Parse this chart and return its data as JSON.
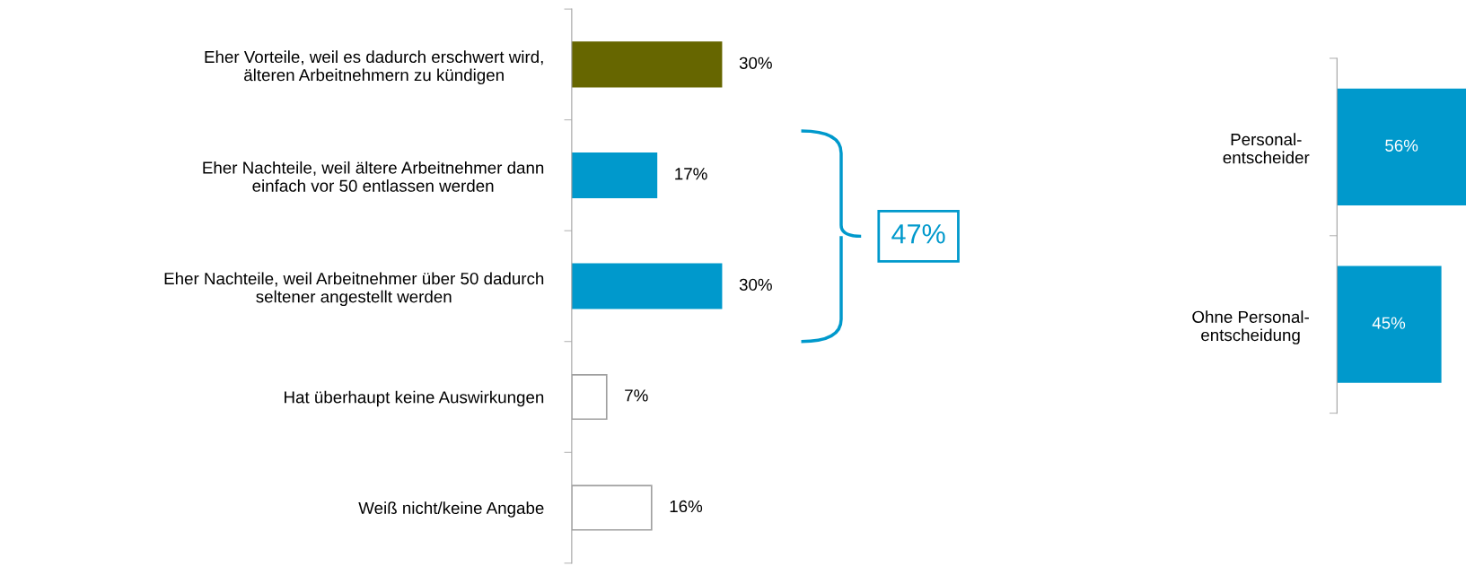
{
  "chart_data": [
    {
      "type": "bar",
      "orientation": "horizontal",
      "categories": [
        "Eher Vorteile, weil es dadurch erschwert wird,\nälteren Arbeitnehmern zu kündigen",
        "Eher Nachteile, weil ältere Arbeitnehmer dann\neinfach vor 50 entlassen werden",
        "Eher Nachteile, weil Arbeitnehmer über 50 dadurch\nseltener angestellt werden",
        "Hat überhaupt keine Auswirkungen",
        "Weiß nicht/keine Angabe"
      ],
      "values": [
        30,
        17,
        30,
        7,
        16
      ],
      "colors": [
        "#666600",
        "#0099cc",
        "#0099cc",
        "#ffffff",
        "#ffffff"
      ],
      "value_labels": [
        "30%",
        "17%",
        "30%",
        "7%",
        "16%"
      ],
      "annotations": [
        "47%"
      ]
    },
    {
      "type": "bar",
      "orientation": "horizontal",
      "categories": [
        "Personal-\nentscheider",
        "Ohne Personal-\nentscheidung"
      ],
      "values": [
        56,
        45
      ],
      "colors": [
        "#0099cc",
        "#0099cc"
      ],
      "value_labels": [
        "56%",
        "45%"
      ]
    }
  ]
}
